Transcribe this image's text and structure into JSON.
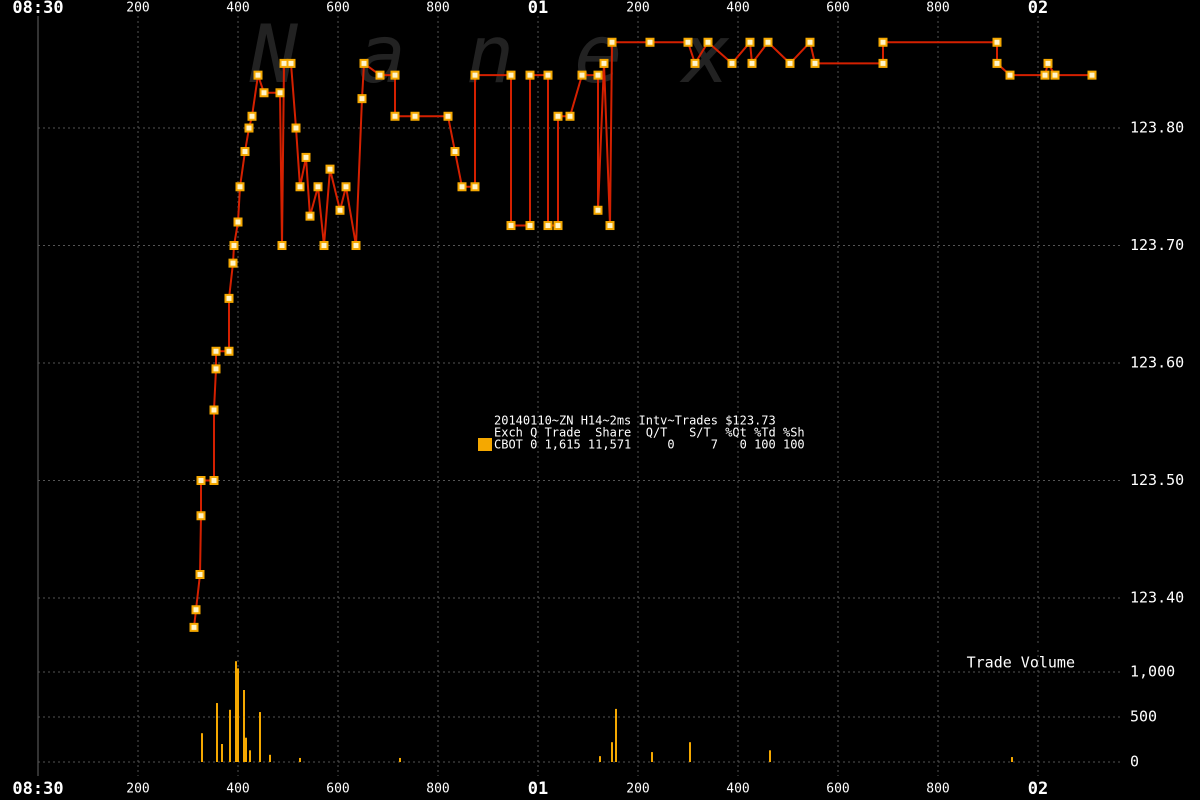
{
  "chart_data": [
    {
      "type": "line",
      "watermark": "Nanex",
      "xlim": [
        0,
        2300
      ],
      "xticks": [
        {
          "value": 0,
          "label": "08:30"
        },
        200,
        400,
        600,
        800,
        {
          "value": 1000,
          "label": "01"
        },
        {
          "value": 1200,
          "label": "200"
        },
        {
          "value": 1400,
          "label": "400"
        },
        {
          "value": 1600,
          "label": "600"
        },
        {
          "value": 1800,
          "label": "800"
        },
        {
          "value": 2000,
          "label": "02"
        }
      ],
      "ylim": [
        123.36,
        123.895
      ],
      "yticks": [
        {
          "value": 123.4,
          "label": "123.40"
        },
        {
          "value": 123.5,
          "label": "123.50"
        },
        {
          "value": 123.6,
          "label": "123.60"
        },
        {
          "value": 123.7,
          "label": "123.70"
        },
        {
          "value": 123.8,
          "label": "123.80"
        }
      ],
      "grid": true,
      "series": [
        {
          "color": "#d42000",
          "marker_color": "#f5a800",
          "x": [
            312,
            316,
            324,
            326,
            326,
            352,
            352,
            356,
            356,
            382,
            382,
            390,
            392,
            400,
            404,
            414,
            422,
            428,
            440,
            452,
            484,
            488,
            492,
            506,
            516,
            524,
            536,
            544,
            560,
            572,
            584,
            604,
            616,
            636,
            648,
            652,
            684,
            714,
            714,
            754,
            820,
            834,
            848,
            874,
            874,
            946,
            946,
            984,
            984,
            1020,
            1020,
            1040,
            1040,
            1064,
            1088,
            1120,
            1120,
            1132,
            1144,
            1148,
            1224,
            1300,
            1314,
            1340,
            1388,
            1424,
            1428,
            1460,
            1504,
            1544,
            1554,
            1690,
            1690,
            1918,
            1918,
            1944,
            2014,
            2020,
            2034,
            2108
          ],
          "values": [
            123.375,
            123.39,
            123.42,
            123.47,
            123.5,
            123.5,
            123.56,
            123.595,
            123.61,
            123.61,
            123.655,
            123.685,
            123.7,
            123.72,
            123.75,
            123.78,
            123.8,
            123.81,
            123.845,
            123.83,
            123.83,
            123.7,
            123.855,
            123.855,
            123.8,
            123.75,
            123.775,
            123.725,
            123.75,
            123.7,
            123.765,
            123.73,
            123.75,
            123.7,
            123.825,
            123.855,
            123.845,
            123.845,
            123.81,
            123.81,
            123.81,
            123.78,
            123.75,
            123.75,
            123.845,
            123.845,
            123.717,
            123.717,
            123.845,
            123.845,
            123.717,
            123.717,
            123.81,
            123.81,
            123.845,
            123.845,
            123.73,
            123.855,
            123.717,
            123.873,
            123.873,
            123.873,
            123.855,
            123.873,
            123.855,
            123.873,
            123.855,
            123.873,
            123.855,
            123.873,
            123.855,
            123.855,
            123.873,
            123.873,
            123.855,
            123.845,
            123.845,
            123.855,
            123.845,
            123.845
          ]
        }
      ],
      "legend": {
        "title": "20140110~ZN H14~2ms Intv~Trades $123.73",
        "header": "Exch Q Trade  Share  Q/T   S/T  %Qt %Td %Sh",
        "rows": [
          {
            "text": "CBOT 0 1,615 11,571     0     7   0 100 100",
            "color": "#f5a800"
          }
        ]
      }
    },
    {
      "type": "bar",
      "axis_label": "Trade Volume",
      "xlim": [
        0,
        2300
      ],
      "xticks": [
        {
          "value": 0,
          "label": "08:30"
        },
        200,
        400,
        600,
        800,
        {
          "value": 1000,
          "label": "01"
        },
        {
          "value": 1200,
          "label": "200"
        },
        {
          "value": 1400,
          "label": "400"
        },
        {
          "value": 1600,
          "label": "600"
        },
        {
          "value": 1800,
          "label": "800"
        },
        {
          "value": 2000,
          "label": "02"
        }
      ],
      "ylim": [
        0,
        1150
      ],
      "yticks": [
        0,
        500,
        {
          "value": 1000,
          "label": "1,000"
        }
      ],
      "grid": true,
      "color": "#f5a800",
      "x": [
        328,
        358,
        368,
        384,
        396,
        400,
        412,
        416,
        424,
        444,
        464,
        524,
        724,
        1124,
        1148,
        1156,
        1228,
        1304,
        1464,
        1948
      ],
      "values": [
        320,
        655,
        200,
        580,
        1120,
        1040,
        800,
        270,
        130,
        555,
        80,
        45,
        45,
        65,
        220,
        590,
        110,
        220,
        130,
        55
      ]
    }
  ]
}
